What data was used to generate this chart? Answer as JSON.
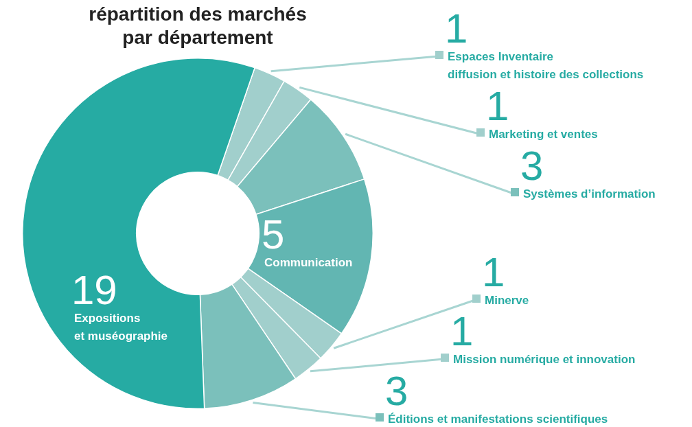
{
  "chart_data": {
    "type": "donut",
    "title": "répartition des marchés\npar département",
    "categories": [
      "Espaces Inventaire diffusion et histoire des collections",
      "Marketing et ventes",
      "Systèmes d’information",
      "Communication",
      "Minerve",
      "Mission numérique et innovation",
      "Éditions et manifestations scientifiques",
      "Expositions et muséographie"
    ],
    "values": [
      1,
      1,
      3,
      5,
      1,
      1,
      3,
      19
    ],
    "colors": [
      "#a1cfcc",
      "#a1cfcc",
      "#7bc0bb",
      "#62b6b2",
      "#a1cfcc",
      "#a1cfcc",
      "#7bc0bb",
      "#26aba3"
    ],
    "data_labels": true,
    "legend": "right"
  }
}
